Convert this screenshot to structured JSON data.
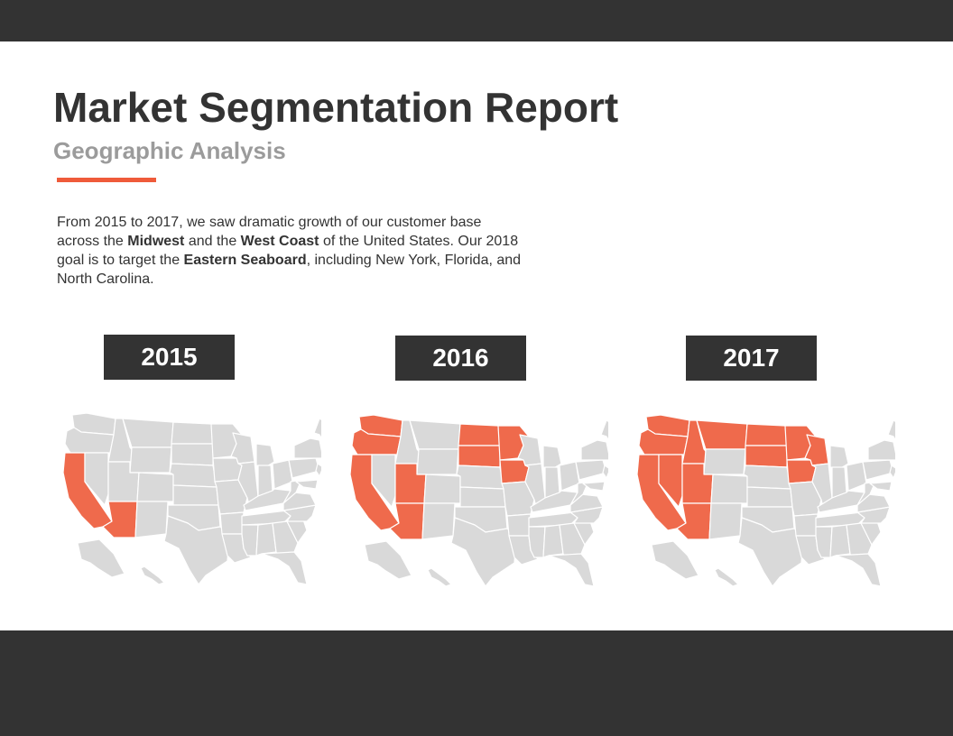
{
  "report": {
    "title": "Market Segmentation Report",
    "subtitle": "Geographic Analysis",
    "summary": [
      {
        "text": "From 2015 to 2017, we saw dramatic growth of our customer base across the ",
        "bold": false
      },
      {
        "text": "Midwest",
        "bold": true
      },
      {
        "text": " and the ",
        "bold": false
      },
      {
        "text": "West Coast",
        "bold": true
      },
      {
        "text": " of the United States. Our 2018 goal is to target the ",
        "bold": false
      },
      {
        "text": "Eastern Seaboard",
        "bold": true
      },
      {
        "text": ", including New York, Florida, and North Carolina.",
        "bold": false
      }
    ]
  },
  "colors": {
    "bar": "#333333",
    "accent": "#ef5b3a",
    "highlight_state": "#ef6a4c",
    "base_state": "#d9d9d9",
    "state_border": "#ffffff"
  },
  "maps": [
    {
      "year": "2015",
      "highlighted_states": [
        "CA",
        "AZ"
      ]
    },
    {
      "year": "2016",
      "highlighted_states": [
        "WA",
        "OR",
        "CA",
        "UT",
        "AZ",
        "ND",
        "SD",
        "MN",
        "IA"
      ]
    },
    {
      "year": "2017",
      "highlighted_states": [
        "WA",
        "OR",
        "CA",
        "NV",
        "UT",
        "AZ",
        "ID",
        "MT",
        "ND",
        "SD",
        "MN",
        "IA",
        "WI"
      ]
    }
  ]
}
